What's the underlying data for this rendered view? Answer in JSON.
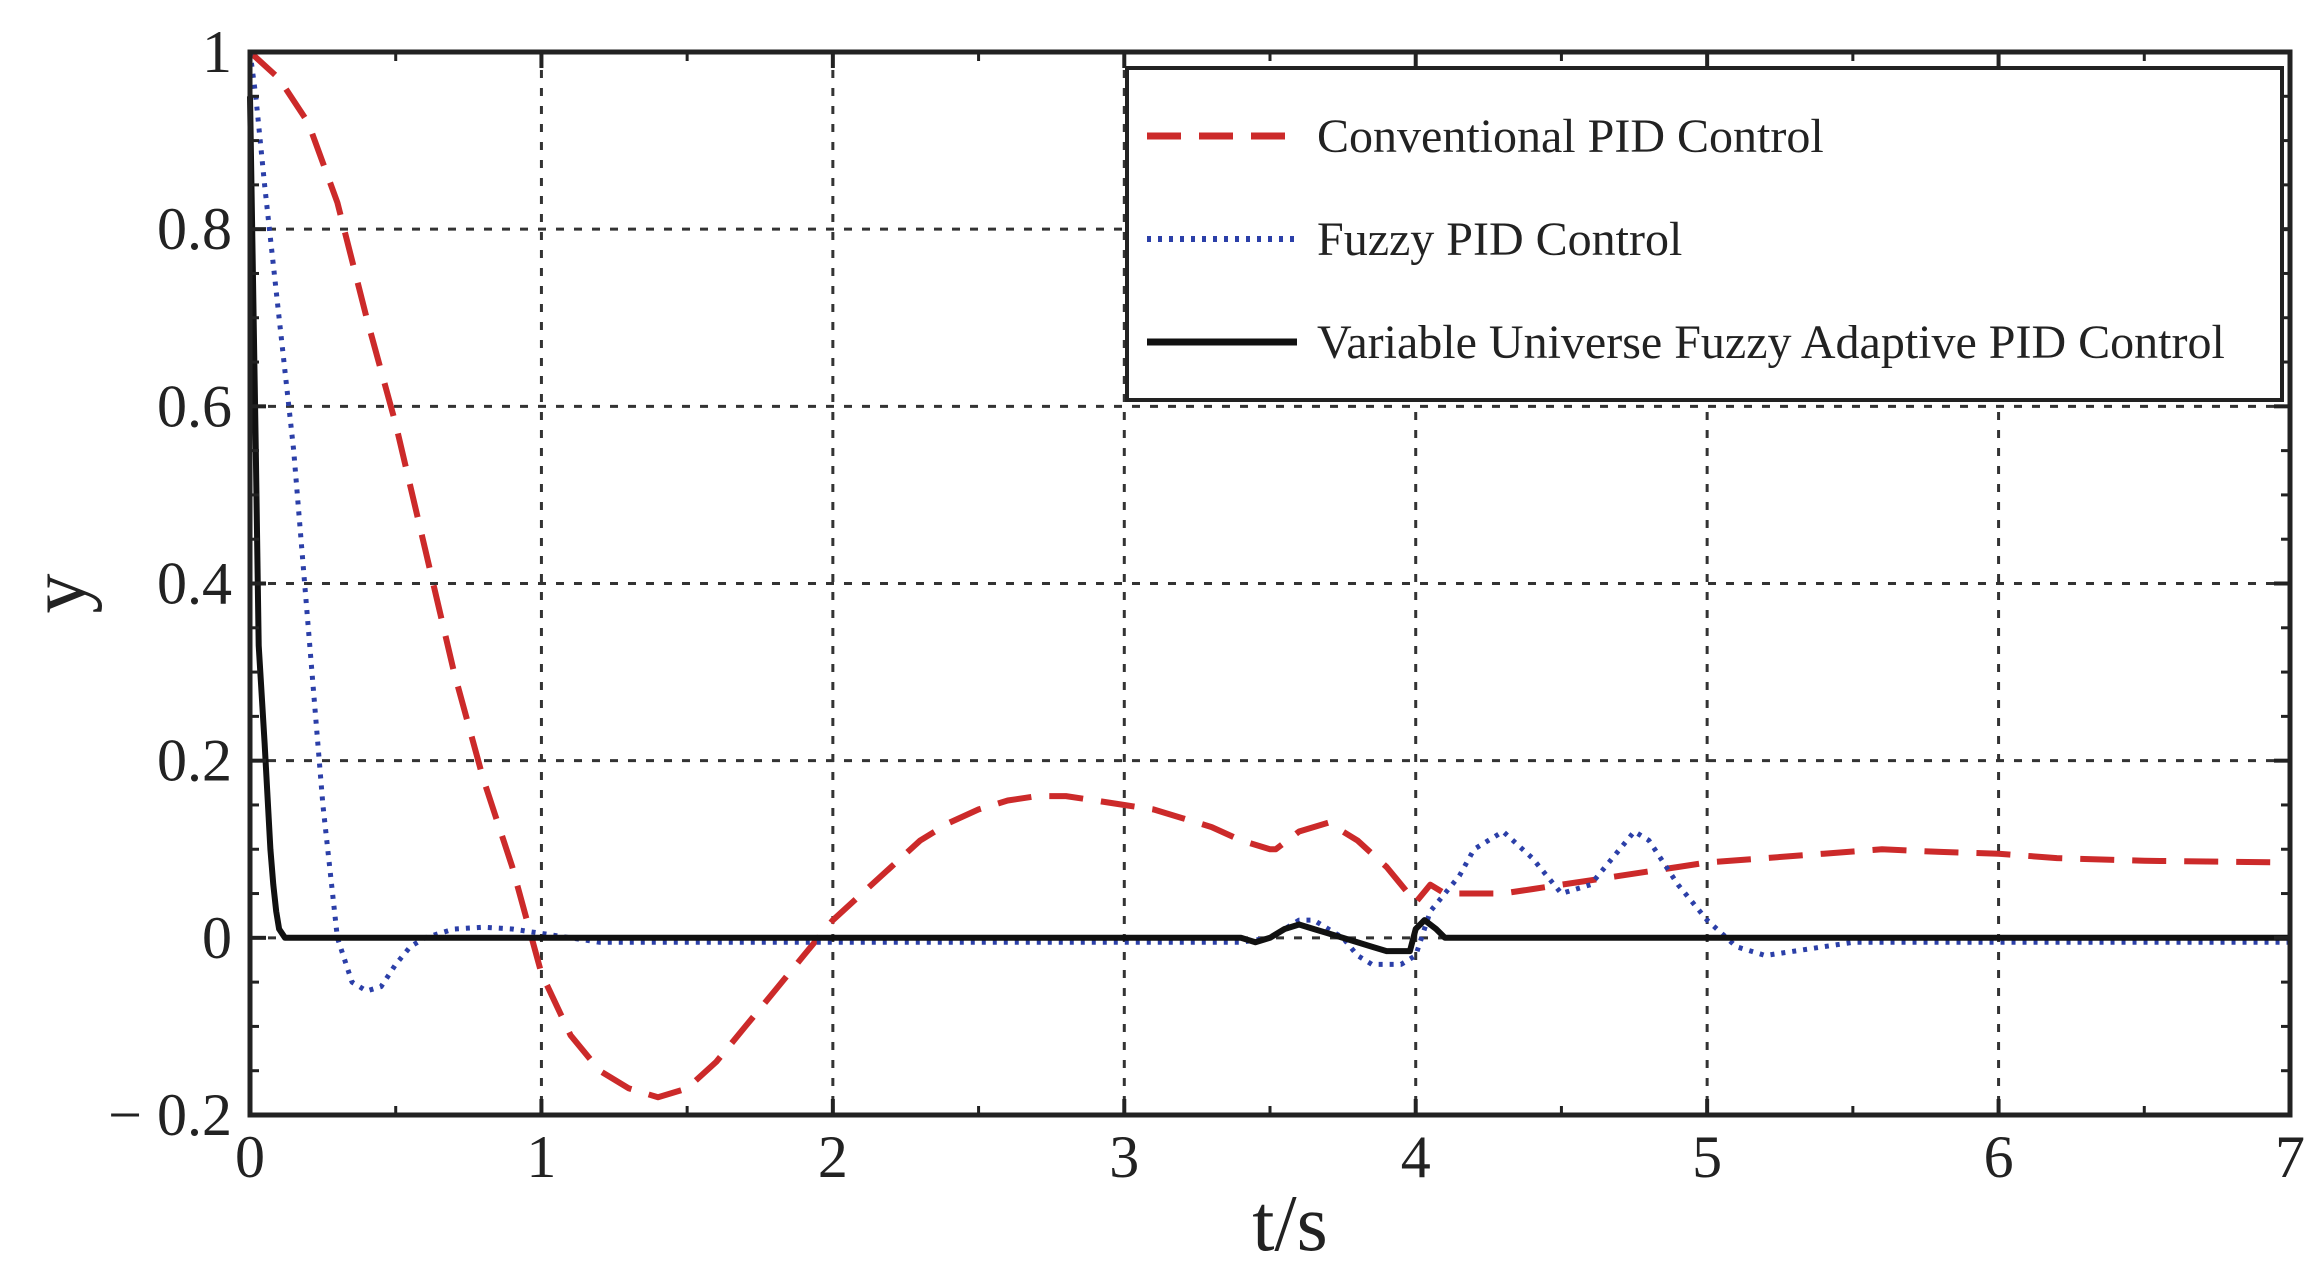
{
  "chart_data": {
    "type": "line",
    "xlabel": "t/s",
    "ylabel": "y",
    "xlim": [
      0,
      7
    ],
    "ylim": [
      -0.2,
      1
    ],
    "xticks": [
      "0",
      "1",
      "2",
      "3",
      "4",
      "5",
      "6",
      "7"
    ],
    "yticks": [
      "− 0.2",
      "0",
      "0.2",
      "0.4",
      "0.6",
      "0.8",
      "1"
    ],
    "grid": true,
    "legend_position": "top-right",
    "series": [
      {
        "name": "Conventional PID Control",
        "color": "#cc2a2a",
        "style": "dashed",
        "x": [
          0,
          0.1,
          0.2,
          0.3,
          0.4,
          0.5,
          0.6,
          0.7,
          0.8,
          0.9,
          1.0,
          1.1,
          1.2,
          1.3,
          1.4,
          1.5,
          1.6,
          1.7,
          1.8,
          1.9,
          2.0,
          2.1,
          2.2,
          2.3,
          2.4,
          2.5,
          2.6,
          2.7,
          2.8,
          2.9,
          3.0,
          3.1,
          3.2,
          3.3,
          3.4,
          3.5,
          3.52,
          3.6,
          3.7,
          3.8,
          3.9,
          4.0,
          4.05,
          4.1,
          4.2,
          4.3,
          4.4,
          4.5,
          4.6,
          4.7,
          4.8,
          4.9,
          5.0,
          5.2,
          5.4,
          5.6,
          5.8,
          6.0,
          6.2,
          6.5,
          7.0
        ],
        "y": [
          1.0,
          0.97,
          0.92,
          0.83,
          0.7,
          0.58,
          0.44,
          0.3,
          0.18,
          0.08,
          -0.04,
          -0.11,
          -0.15,
          -0.17,
          -0.18,
          -0.17,
          -0.14,
          -0.1,
          -0.06,
          -0.02,
          0.02,
          0.05,
          0.08,
          0.11,
          0.13,
          0.145,
          0.155,
          0.16,
          0.16,
          0.155,
          0.15,
          0.145,
          0.135,
          0.125,
          0.11,
          0.1,
          0.1,
          0.12,
          0.13,
          0.11,
          0.08,
          0.04,
          0.06,
          0.05,
          0.05,
          0.05,
          0.055,
          0.06,
          0.065,
          0.07,
          0.075,
          0.08,
          0.085,
          0.09,
          0.095,
          0.1,
          0.097,
          0.095,
          0.09,
          0.087,
          0.085
        ]
      },
      {
        "name": "Fuzzy PID Control",
        "color": "#2b3fa8",
        "style": "dotted",
        "x": [
          0,
          0.02,
          0.05,
          0.1,
          0.15,
          0.2,
          0.25,
          0.3,
          0.35,
          0.4,
          0.45,
          0.5,
          0.55,
          0.6,
          0.7,
          0.8,
          0.9,
          1.0,
          1.1,
          1.2,
          1.5,
          2.0,
          2.5,
          3.0,
          3.4,
          3.5,
          3.55,
          3.6,
          3.65,
          3.7,
          3.75,
          3.8,
          3.85,
          3.9,
          3.95,
          4.0,
          4.05,
          4.15,
          4.2,
          4.3,
          4.4,
          4.5,
          4.6,
          4.7,
          4.75,
          4.8,
          4.9,
          5.0,
          5.1,
          5.2,
          5.3,
          5.4,
          5.5,
          6.0,
          6.5,
          7.0
        ],
        "y": [
          1.0,
          0.95,
          0.85,
          0.7,
          0.55,
          0.35,
          0.15,
          0.0,
          -0.05,
          -0.06,
          -0.055,
          -0.03,
          -0.01,
          0.0,
          0.01,
          0.012,
          0.01,
          0.005,
          0.0,
          -0.005,
          -0.005,
          -0.005,
          -0.005,
          -0.005,
          -0.005,
          0.0,
          0.01,
          0.02,
          0.02,
          0.01,
          0.0,
          -0.02,
          -0.03,
          -0.03,
          -0.03,
          -0.02,
          0.03,
          0.07,
          0.1,
          0.12,
          0.09,
          0.05,
          0.06,
          0.1,
          0.12,
          0.11,
          0.06,
          0.02,
          -0.01,
          -0.02,
          -0.015,
          -0.01,
          -0.005,
          -0.005,
          -0.005,
          -0.005
        ]
      },
      {
        "name": "Variable Universe Fuzzy Adaptive PID Control",
        "color": "#111111",
        "style": "solid",
        "x": [
          0,
          0.01,
          0.02,
          0.03,
          0.05,
          0.07,
          0.08,
          0.09,
          0.1,
          0.12,
          0.15,
          0.5,
          1.0,
          2.0,
          3.0,
          3.4,
          3.45,
          3.5,
          3.55,
          3.6,
          3.65,
          3.7,
          3.8,
          3.85,
          3.9,
          3.95,
          3.98,
          4.0,
          4.03,
          4.07,
          4.1,
          4.2,
          5.0,
          6.0,
          7.0
        ],
        "y": [
          0.95,
          0.75,
          0.55,
          0.33,
          0.22,
          0.1,
          0.06,
          0.03,
          0.01,
          0.0,
          0.0,
          0.0,
          0.0,
          0.0,
          0.0,
          0.0,
          -0.005,
          0.0,
          0.01,
          0.015,
          0.01,
          0.005,
          -0.005,
          -0.01,
          -0.015,
          -0.015,
          -0.015,
          0.01,
          0.02,
          0.01,
          0.0,
          0.0,
          0.0,
          0.0,
          0.0
        ]
      }
    ]
  }
}
